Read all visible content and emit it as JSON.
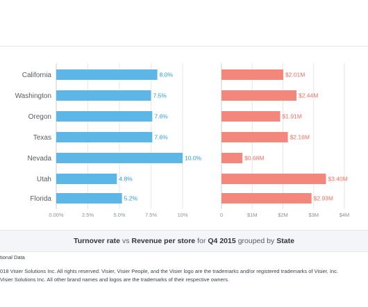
{
  "chart_data": [
    {
      "type": "bar",
      "orientation": "horizontal",
      "categories": [
        "California",
        "Washington",
        "Oregon",
        "Texas",
        "Nevada",
        "Utah",
        "Florida"
      ],
      "values": [
        8.0,
        7.5,
        7.6,
        7.6,
        10.0,
        4.8,
        5.2
      ],
      "value_labels": [
        "8.0%",
        "7.5%",
        "7.6%",
        "7.6%",
        "10.0%",
        "4.8%",
        "5.2%"
      ],
      "xlim": [
        0,
        10
      ],
      "ticks": [
        0,
        2.5,
        5,
        7.5,
        10
      ],
      "tick_labels": [
        "0.00%",
        "2.5%",
        "5.0%",
        "7.5%",
        "10%"
      ],
      "color": "#5db7e6",
      "grid": true
    },
    {
      "type": "bar",
      "orientation": "horizontal",
      "categories": [
        "California",
        "Washington",
        "Oregon",
        "Texas",
        "Nevada",
        "Utah",
        "Florida"
      ],
      "values": [
        2.01,
        2.44,
        1.91,
        2.16,
        0.68,
        3.4,
        2.93
      ],
      "value_labels": [
        "$2.01M",
        "$2.44M",
        "$1.91M",
        "$2.16M",
        "$0.68M",
        "$3.40M",
        "$2.93M"
      ],
      "xlim": [
        0,
        4
      ],
      "ticks": [
        0,
        1,
        2,
        3,
        4
      ],
      "tick_labels": [
        "0",
        "$1M",
        "$2M",
        "$3M",
        "$4M"
      ],
      "color": "#f3877b",
      "grid": true
    }
  ],
  "caption": {
    "part1": "Turnover rate",
    "part2": "vs",
    "part3": "Revenue per store",
    "part4": "for",
    "part5": "Q4 2015",
    "part6": "grouped by",
    "part7": "State"
  },
  "footer": {
    "source": "tional Data",
    "legal_line1": "018 Visier Solutions Inc. All rights reserved. Visier, Visier People, and the Visier logo are the trademarks and/or registered trademarks of Visier, Inc.",
    "legal_line2": "Visier Solutions Inc. All other brand names and logos are the trademarks of their respective owners."
  },
  "colors": {
    "left_bar": "#5db7e6",
    "right_bar": "#f3877b",
    "left_label": "#2a9bd8",
    "right_label": "#ef6f62",
    "grid": "#e3e6ea"
  }
}
